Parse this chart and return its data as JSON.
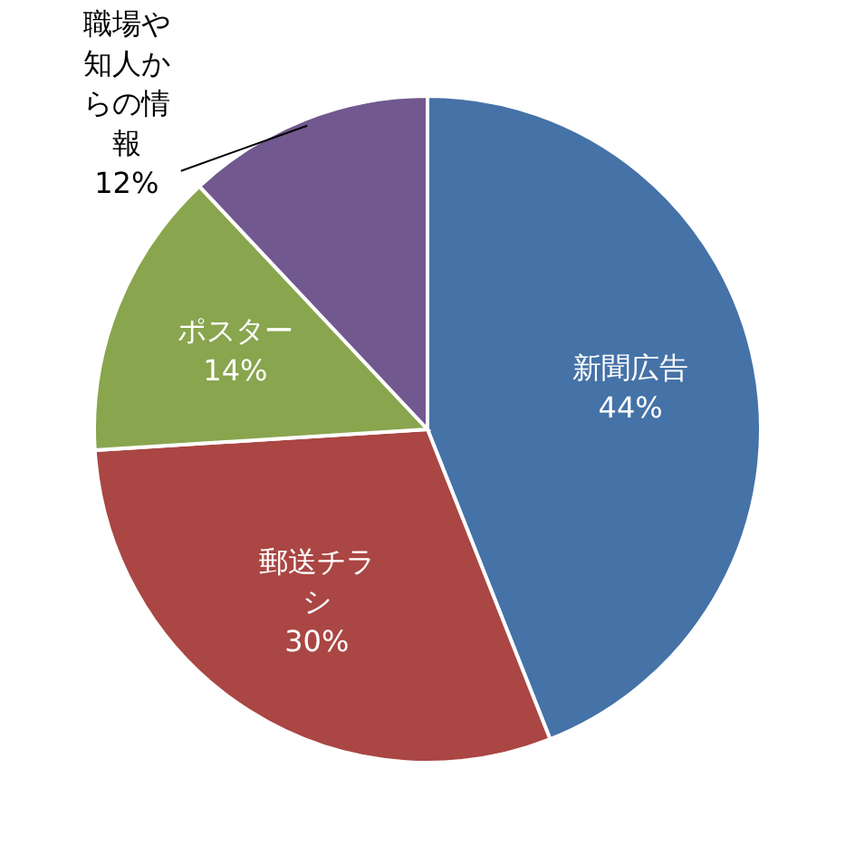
{
  "chart_data": {
    "type": "pie",
    "categories": [
      "新聞広告",
      "郵送チラシ",
      "ポスター",
      "職場や知人からの情報"
    ],
    "values": [
      44,
      30,
      14,
      12
    ],
    "value_labels": [
      "44%",
      "30%",
      "14%",
      "12%"
    ],
    "colors": [
      "#4572a7",
      "#aa4643",
      "#89a54e",
      "#71588f"
    ]
  }
}
